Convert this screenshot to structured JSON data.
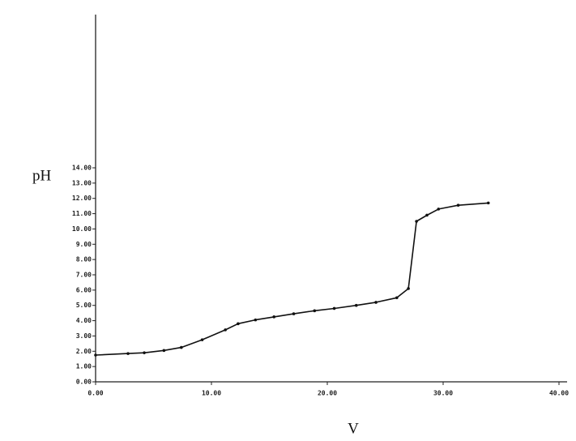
{
  "chart_data": {
    "type": "line",
    "x_label": "V",
    "y_label": "pH",
    "x": [
      0,
      2.8,
      4.2,
      5.9,
      7.4,
      9.2,
      11.2,
      12.3,
      13.8,
      15.4,
      17.1,
      18.9,
      20.6,
      22.5,
      24.2,
      26.0,
      27.0,
      27.7,
      28.6,
      29.6,
      31.3,
      33.9
    ],
    "series": [
      {
        "color": "#111111",
        "values": [
          1.75,
          1.85,
          1.9,
          2.05,
          2.25,
          2.75,
          3.4,
          3.8,
          4.05,
          4.25,
          4.45,
          4.65,
          4.8,
          5.0,
          5.2,
          5.5,
          6.1,
          10.5,
          10.9,
          11.3,
          11.55,
          11.7
        ]
      }
    ],
    "xlim": [
      0,
      40
    ],
    "ylim": [
      0,
      14
    ],
    "xticks": [
      {
        "value": 0,
        "label": "0.00"
      },
      {
        "value": 10,
        "label": "10.00"
      },
      {
        "value": 20,
        "label": "20.00"
      },
      {
        "value": 30,
        "label": "30.00"
      },
      {
        "value": 40,
        "label": "40.00"
      }
    ],
    "yticks": [
      {
        "value": 0,
        "label": "0.00"
      },
      {
        "value": 1,
        "label": "1.00"
      },
      {
        "value": 2,
        "label": "2.00"
      },
      {
        "value": 3,
        "label": "3.00"
      },
      {
        "value": 4,
        "label": "4.00"
      },
      {
        "value": 5,
        "label": "5.00"
      },
      {
        "value": 6,
        "label": "6.00"
      },
      {
        "value": 7,
        "label": "7.00"
      },
      {
        "value": 8,
        "label": "8.00"
      },
      {
        "value": 9,
        "label": "9.00"
      },
      {
        "value": 10,
        "label": "10.00"
      },
      {
        "value": 11,
        "label": "11.00"
      },
      {
        "value": 12,
        "label": "12.00"
      },
      {
        "value": 13,
        "label": "13.00"
      },
      {
        "value": 14,
        "label": "14.00"
      }
    ]
  }
}
